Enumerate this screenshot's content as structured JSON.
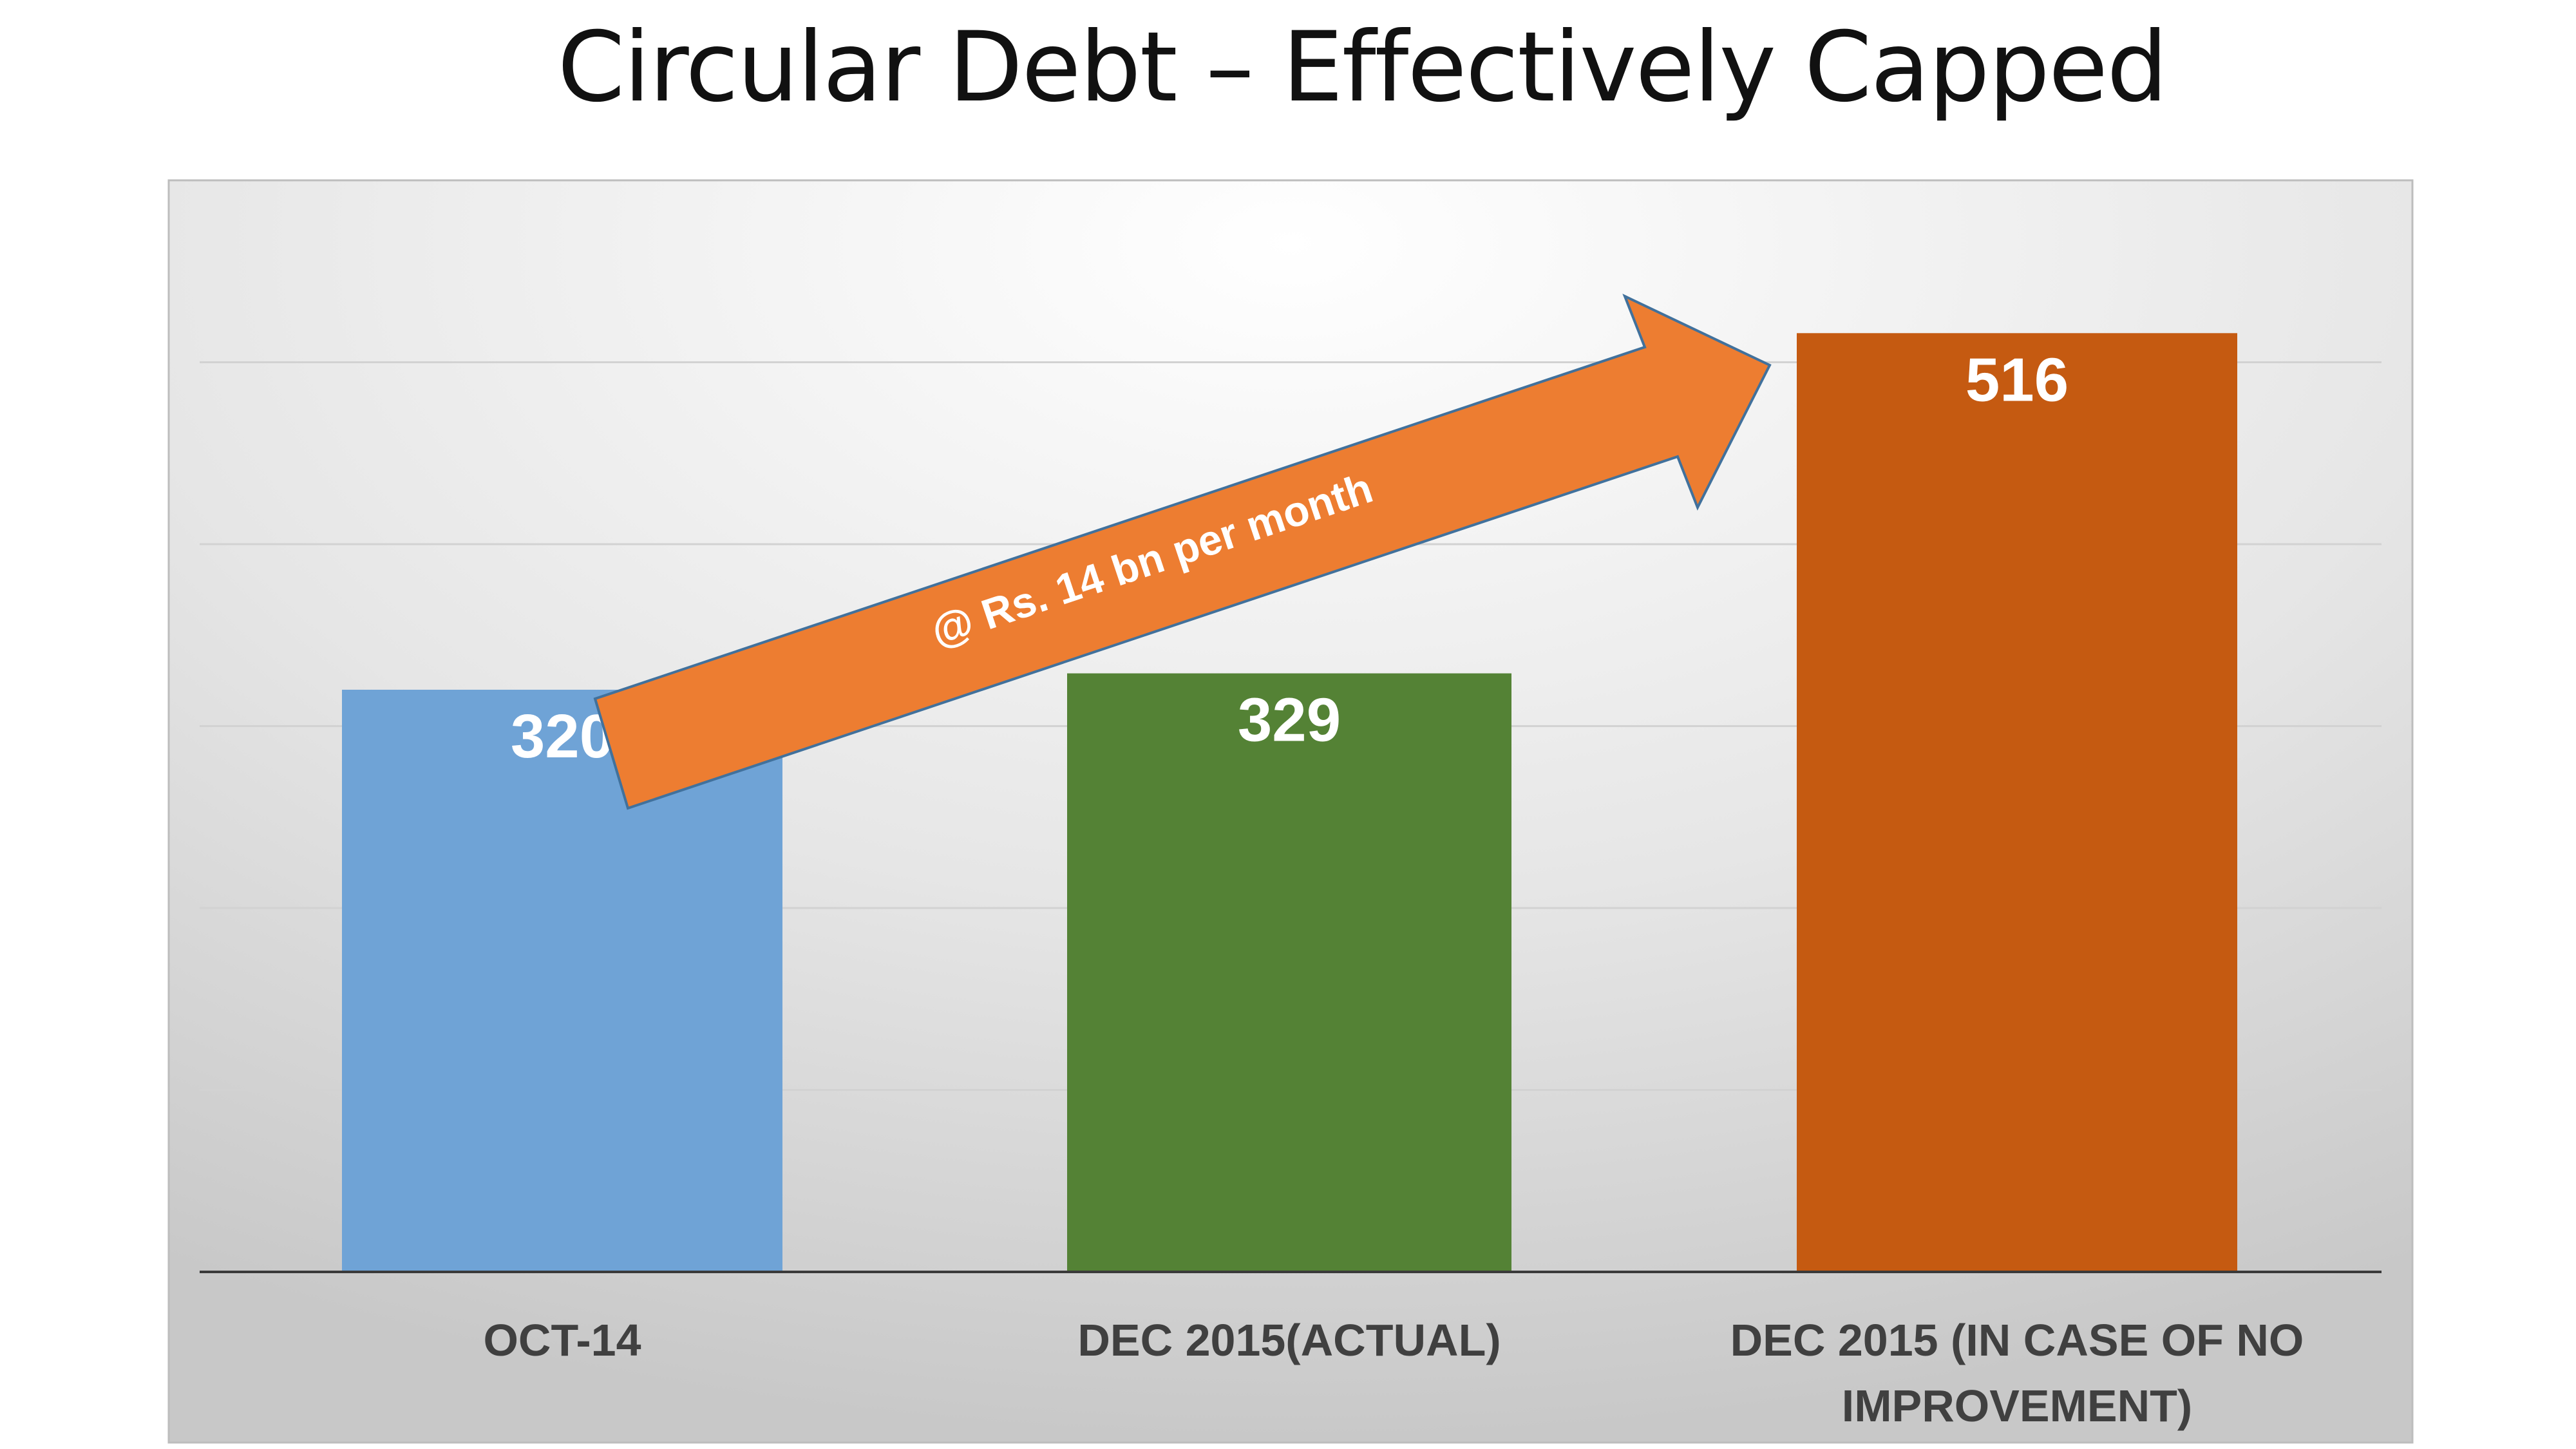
{
  "chart_data": {
    "type": "bar",
    "title": "Circular Debt – Effectively Capped",
    "xlabel": "",
    "ylabel": "",
    "categories": [
      "OCT-14",
      "DEC 2015(ACTUAL)",
      "DEC 2015 (IN CASE OF NO IMPROVEMENT)"
    ],
    "category_lines": [
      [
        "OCT-14"
      ],
      [
        "DEC 2015(ACTUAL)"
      ],
      [
        "DEC 2015 (IN CASE OF NO",
        "IMPROVEMENT)"
      ]
    ],
    "values": [
      320,
      329,
      516
    ],
    "colors": [
      "#6fa3d6",
      "#548235",
      "#c55a11"
    ],
    "ylim": [
      0,
      600
    ],
    "grid": true,
    "legend": "none",
    "annotation": {
      "text": "@ Rs. 14 bn per month",
      "arrow_color": "#ed7d31"
    }
  }
}
